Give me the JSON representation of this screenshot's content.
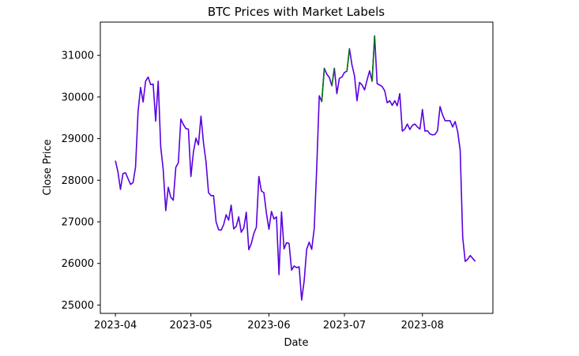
{
  "chart_data": {
    "type": "line",
    "title": "BTC Prices with Market Labels",
    "xlabel": "Date",
    "ylabel": "Close Price",
    "x_range": [
      "2023-03-26",
      "2023-08-29"
    ],
    "ylim": [
      24800,
      31800
    ],
    "x_ticks": [
      {
        "date": "2023-04-01",
        "label": "2023-04"
      },
      {
        "date": "2023-05-01",
        "label": "2023-05"
      },
      {
        "date": "2023-06-01",
        "label": "2023-06"
      },
      {
        "date": "2023-07-01",
        "label": "2023-07"
      },
      {
        "date": "2023-08-01",
        "label": "2023-08"
      }
    ],
    "y_ticks": [
      {
        "value": 25000,
        "label": "25000"
      },
      {
        "value": 26000,
        "label": "26000"
      },
      {
        "value": 27000,
        "label": "27000"
      },
      {
        "value": 28000,
        "label": "28000"
      },
      {
        "value": 29000,
        "label": "29000"
      },
      {
        "value": 30000,
        "label": "30000"
      },
      {
        "value": 31000,
        "label": "31000"
      }
    ],
    "grid": false,
    "legend": "none",
    "colors": {
      "down": "#0000ff",
      "up": "#008000",
      "mixed": "#5a00e0"
    },
    "series": [
      {
        "color": "#5a00e0",
        "points": [
          [
            "2023-04-01",
            28470
          ],
          [
            "2023-04-02",
            28200
          ],
          [
            "2023-04-03",
            27780
          ],
          [
            "2023-04-04",
            28160
          ],
          [
            "2023-04-05",
            28180
          ],
          [
            "2023-04-06",
            28040
          ],
          [
            "2023-04-07",
            27900
          ],
          [
            "2023-04-08",
            27940
          ],
          [
            "2023-04-09",
            28320
          ],
          [
            "2023-04-10",
            29650
          ],
          [
            "2023-04-11",
            30230
          ],
          [
            "2023-04-12",
            29880
          ],
          [
            "2023-04-13",
            30380
          ],
          [
            "2023-04-14",
            30480
          ],
          [
            "2023-04-15",
            30300
          ],
          [
            "2023-04-16",
            30310
          ],
          [
            "2023-04-17",
            29420
          ],
          [
            "2023-04-18",
            30380
          ],
          [
            "2023-04-19",
            28800
          ],
          [
            "2023-04-20",
            28250
          ],
          [
            "2023-04-21",
            27270
          ],
          [
            "2023-04-22",
            27830
          ],
          [
            "2023-04-23",
            27590
          ],
          [
            "2023-04-24",
            27520
          ],
          [
            "2023-04-25",
            28310
          ],
          [
            "2023-04-26",
            28420
          ],
          [
            "2023-04-27",
            29470
          ],
          [
            "2023-04-28",
            29340
          ],
          [
            "2023-04-29",
            29240
          ],
          [
            "2023-04-30",
            29230
          ],
          [
            "2023-05-01",
            28090
          ],
          [
            "2023-05-02",
            28680
          ],
          [
            "2023-05-03",
            29010
          ],
          [
            "2023-05-04",
            28850
          ],
          [
            "2023-05-05",
            29540
          ],
          [
            "2023-05-06",
            28900
          ],
          [
            "2023-05-07",
            28440
          ],
          [
            "2023-05-08",
            27700
          ],
          [
            "2023-05-09",
            27630
          ],
          [
            "2023-05-10",
            27630
          ],
          [
            "2023-05-11",
            27000
          ],
          [
            "2023-05-12",
            26810
          ],
          [
            "2023-05-13",
            26800
          ],
          [
            "2023-05-14",
            26930
          ],
          [
            "2023-05-15",
            27170
          ],
          [
            "2023-05-16",
            27040
          ],
          [
            "2023-05-17",
            27400
          ],
          [
            "2023-05-18",
            26830
          ],
          [
            "2023-05-19",
            26890
          ],
          [
            "2023-05-20",
            27120
          ],
          [
            "2023-05-21",
            26750
          ],
          [
            "2023-05-22",
            26850
          ],
          [
            "2023-05-23",
            27230
          ],
          [
            "2023-05-24",
            26330
          ],
          [
            "2023-05-25",
            26480
          ],
          [
            "2023-05-26",
            26720
          ],
          [
            "2023-05-27",
            26870
          ],
          [
            "2023-05-28",
            28090
          ],
          [
            "2023-05-29",
            27740
          ],
          [
            "2023-05-30",
            27700
          ],
          [
            "2023-05-31",
            27210
          ],
          [
            "2023-06-01",
            26820
          ],
          [
            "2023-06-02",
            27250
          ],
          [
            "2023-06-03",
            27070
          ],
          [
            "2023-06-04",
            27120
          ],
          [
            "2023-06-05",
            25730
          ],
          [
            "2023-06-06",
            27240
          ],
          [
            "2023-06-07",
            26350
          ],
          [
            "2023-06-08",
            26500
          ],
          [
            "2023-06-09",
            26480
          ],
          [
            "2023-06-10",
            25840
          ],
          [
            "2023-06-11",
            25940
          ],
          [
            "2023-06-12",
            25900
          ],
          [
            "2023-06-13",
            25920
          ],
          [
            "2023-06-14",
            25120
          ],
          [
            "2023-06-15",
            25580
          ],
          [
            "2023-06-16",
            26340
          ],
          [
            "2023-06-17",
            26510
          ],
          [
            "2023-06-18",
            26340
          ],
          [
            "2023-06-19",
            26840
          ],
          [
            "2023-06-20",
            28310
          ],
          [
            "2023-06-21",
            30030
          ],
          [
            "2023-06-22",
            29890
          ],
          [
            "2023-06-23",
            30690
          ],
          [
            "2023-06-24",
            30550
          ],
          [
            "2023-06-25",
            30470
          ],
          [
            "2023-06-26",
            30270
          ],
          [
            "2023-06-27",
            30690
          ],
          [
            "2023-06-28",
            30080
          ],
          [
            "2023-06-29",
            30450
          ],
          [
            "2023-06-30",
            30480
          ],
          [
            "2023-07-01",
            30590
          ],
          [
            "2023-07-02",
            30620
          ],
          [
            "2023-07-03",
            31160
          ],
          [
            "2023-07-04",
            30770
          ],
          [
            "2023-07-05",
            30510
          ],
          [
            "2023-07-06",
            29910
          ],
          [
            "2023-07-07",
            30350
          ],
          [
            "2023-07-08",
            30290
          ],
          [
            "2023-07-09",
            30170
          ],
          [
            "2023-07-10",
            30410
          ],
          [
            "2023-07-11",
            30630
          ],
          [
            "2023-07-12",
            30380
          ],
          [
            "2023-07-13",
            31470
          ],
          [
            "2023-07-14",
            30320
          ],
          [
            "2023-07-15",
            30290
          ],
          [
            "2023-07-16",
            30250
          ],
          [
            "2023-07-17",
            30150
          ],
          [
            "2023-07-18",
            29860
          ],
          [
            "2023-07-19",
            29910
          ],
          [
            "2023-07-20",
            29800
          ],
          [
            "2023-07-21",
            29910
          ],
          [
            "2023-07-22",
            29790
          ],
          [
            "2023-07-23",
            30080
          ],
          [
            "2023-07-24",
            29180
          ],
          [
            "2023-07-25",
            29230
          ],
          [
            "2023-07-26",
            29350
          ],
          [
            "2023-07-27",
            29220
          ],
          [
            "2023-07-28",
            29320
          ],
          [
            "2023-07-29",
            29350
          ],
          [
            "2023-07-30",
            29280
          ],
          [
            "2023-07-31",
            29230
          ],
          [
            "2023-08-01",
            29700
          ],
          [
            "2023-08-02",
            29180
          ],
          [
            "2023-08-03",
            29190
          ],
          [
            "2023-08-04",
            29110
          ],
          [
            "2023-08-05",
            29090
          ],
          [
            "2023-08-06",
            29100
          ],
          [
            "2023-08-07",
            29190
          ],
          [
            "2023-08-08",
            29770
          ],
          [
            "2023-08-09",
            29570
          ],
          [
            "2023-08-10",
            29430
          ],
          [
            "2023-08-11",
            29430
          ],
          [
            "2023-08-12",
            29430
          ],
          [
            "2023-08-13",
            29280
          ],
          [
            "2023-08-14",
            29410
          ],
          [
            "2023-08-15",
            29170
          ],
          [
            "2023-08-16",
            28720
          ],
          [
            "2023-08-17",
            26630
          ],
          [
            "2023-08-18",
            26050
          ],
          [
            "2023-08-19",
            26100
          ],
          [
            "2023-08-20",
            26190
          ],
          [
            "2023-08-21",
            26120
          ],
          [
            "2023-08-22",
            26050
          ]
        ]
      }
    ]
  }
}
